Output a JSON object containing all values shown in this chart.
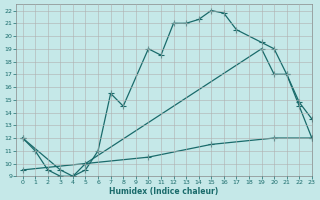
{
  "xlabel": "Humidex (Indice chaleur)",
  "xlim": [
    -0.5,
    23
  ],
  "ylim": [
    9,
    22.5
  ],
  "xticks": [
    0,
    1,
    2,
    3,
    4,
    5,
    6,
    7,
    8,
    9,
    10,
    11,
    12,
    13,
    14,
    15,
    16,
    17,
    18,
    19,
    20,
    21,
    22,
    23
  ],
  "yticks": [
    9,
    10,
    11,
    12,
    13,
    14,
    15,
    16,
    17,
    18,
    19,
    20,
    21,
    22
  ],
  "bg_color": "#c5e8e8",
  "line_color": "#1a6b6b",
  "grid_color": "#b0b0b0",
  "line1_x": [
    0,
    1,
    2,
    3,
    4,
    5,
    6,
    7,
    8,
    10,
    11,
    12,
    13,
    14,
    15,
    16,
    17,
    19,
    20,
    21,
    22,
    23
  ],
  "line1_y": [
    12,
    11,
    9.5,
    9,
    9,
    9.5,
    11,
    15.5,
    14.5,
    19,
    18.5,
    21,
    21,
    21.3,
    22,
    21.8,
    20.5,
    19.5,
    19,
    17,
    14.5,
    12
  ],
  "line2_x": [
    0,
    3,
    4,
    5,
    19,
    20,
    21,
    22,
    23
  ],
  "line2_y": [
    12,
    9.5,
    9,
    10,
    19,
    17,
    17,
    14.8,
    13.5
  ],
  "line3_x": [
    0,
    5,
    10,
    15,
    20,
    23
  ],
  "line3_y": [
    9.5,
    10,
    10.5,
    11.5,
    12,
    12
  ],
  "markersize": 4,
  "linewidth": 0.9
}
